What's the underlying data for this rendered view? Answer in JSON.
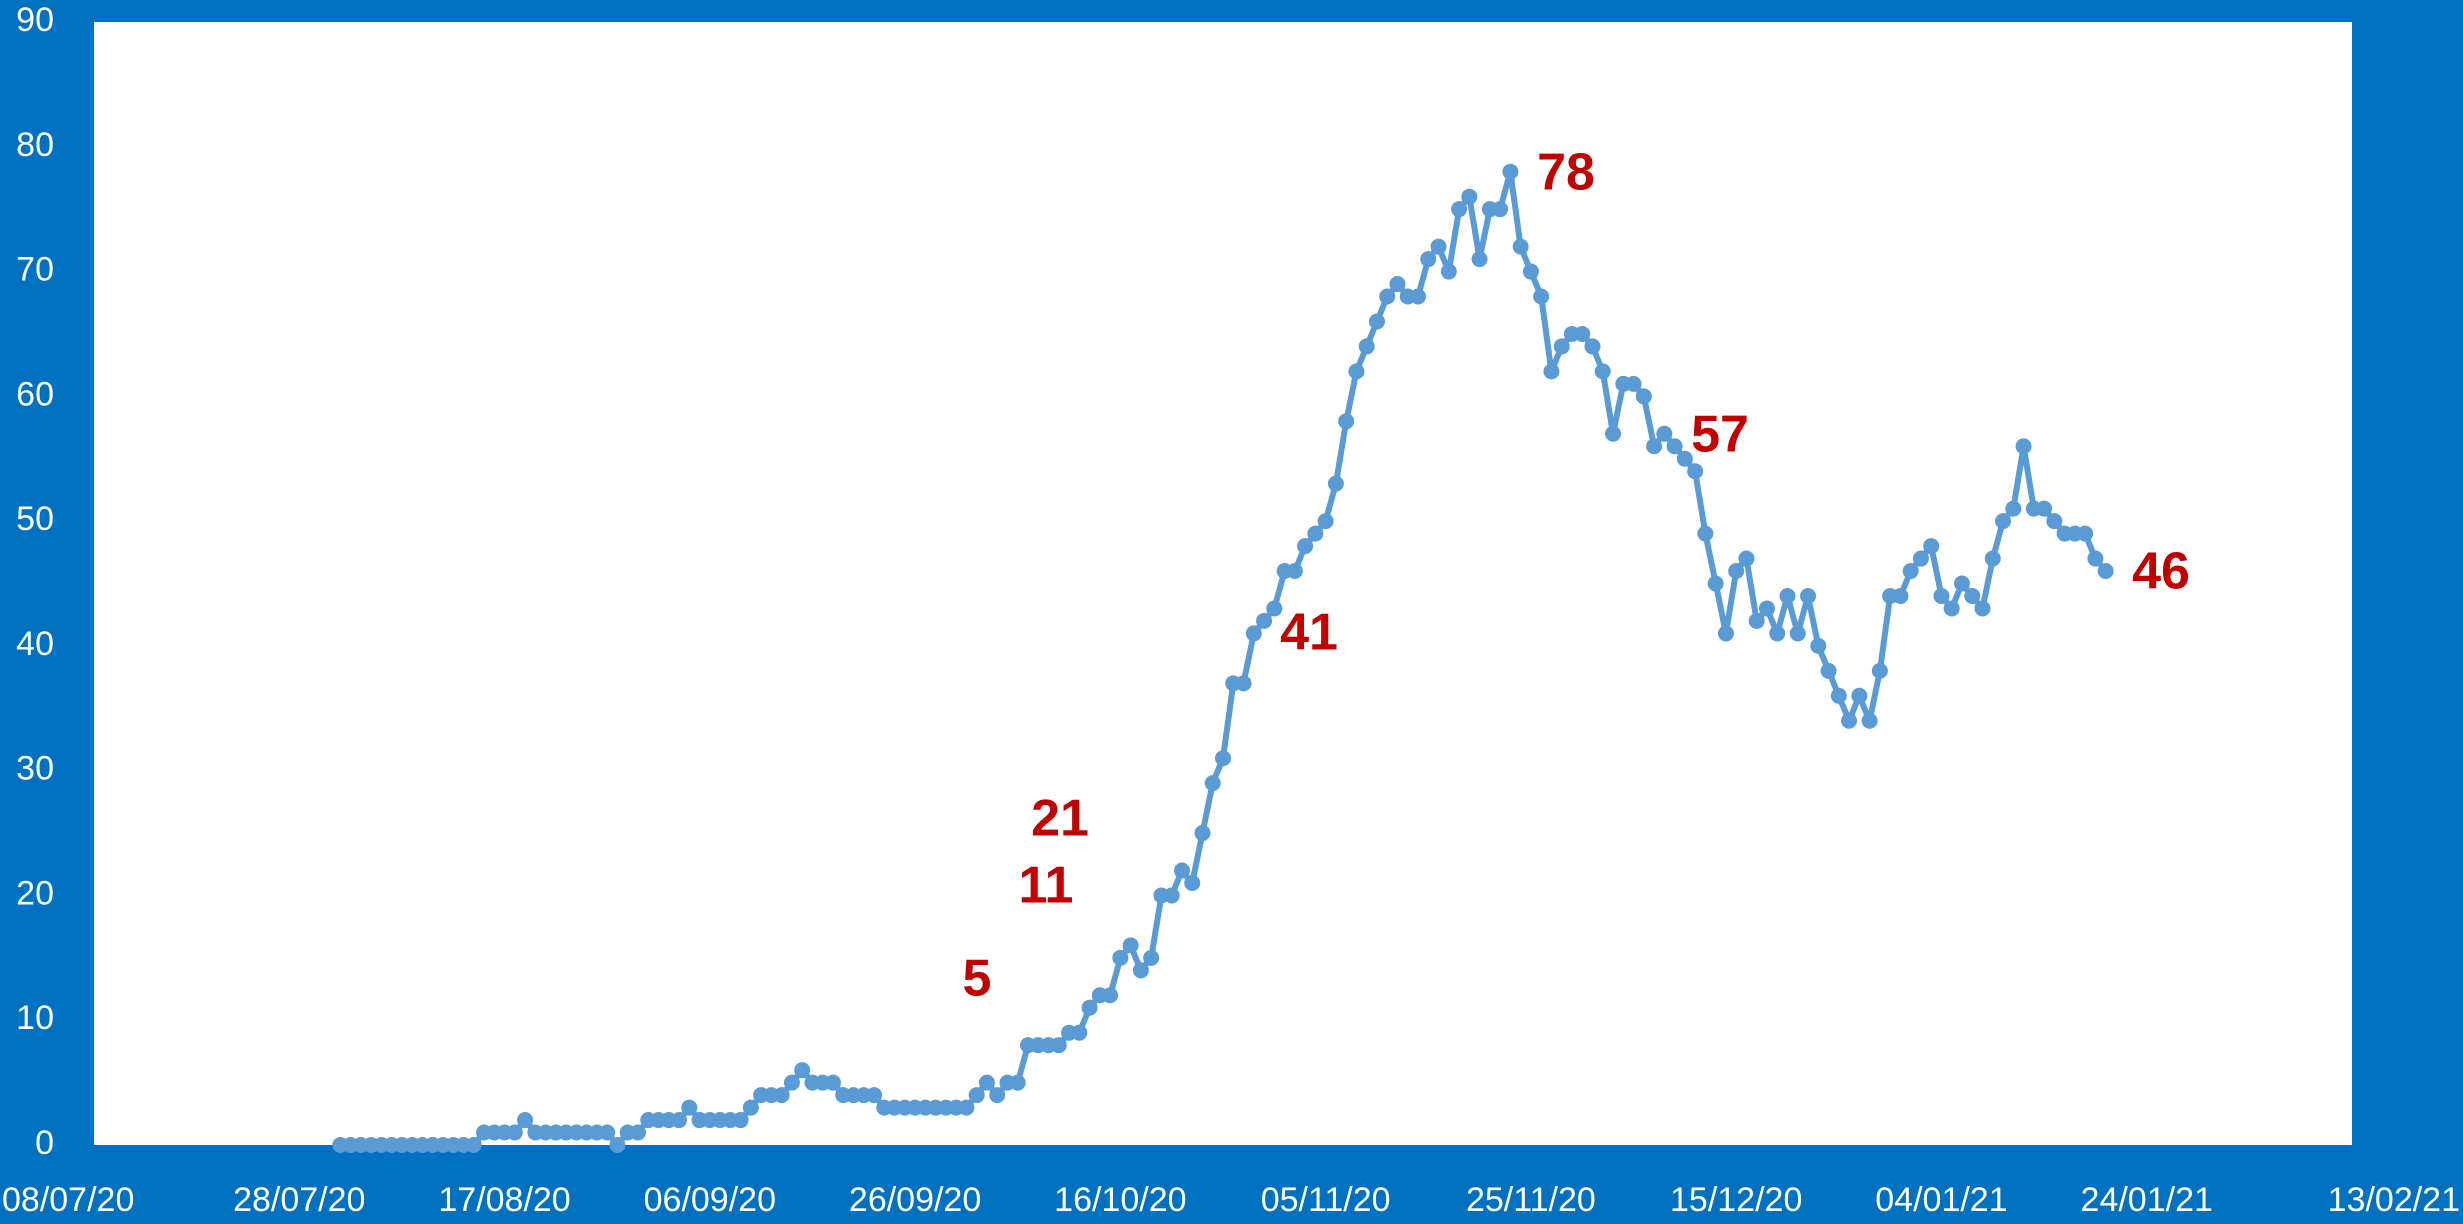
{
  "chart_data": {
    "type": "line",
    "background": "#0070c0",
    "plot_background": "#ffffff",
    "xlim": [
      "08/07/20",
      "13/02/21"
    ],
    "xticks": [
      "08/07/20",
      "28/07/20",
      "17/08/20",
      "06/09/20",
      "26/09/20",
      "16/10/20",
      "05/11/20",
      "25/11/20",
      "15/12/20",
      "04/01/21",
      "24/01/21",
      "13/02/21"
    ],
    "ylim": [
      0,
      90
    ],
    "yticks": [
      0,
      10,
      20,
      30,
      40,
      50,
      60,
      70,
      80,
      90
    ],
    "grid": false,
    "annotations": [
      "5",
      "11",
      "21",
      "41",
      "57",
      "78",
      "46"
    ],
    "annotation_color": "#c00000",
    "x": [
      "01/08/20",
      "02/08/20",
      "03/08/20",
      "04/08/20",
      "05/08/20",
      "06/08/20",
      "07/08/20",
      "08/08/20",
      "09/08/20",
      "10/08/20",
      "11/08/20",
      "12/08/20",
      "13/08/20",
      "14/08/20",
      "15/08/20",
      "16/08/20",
      "17/08/20",
      "18/08/20",
      "19/08/20",
      "20/08/20",
      "21/08/20",
      "22/08/20",
      "23/08/20",
      "24/08/20",
      "25/08/20",
      "26/08/20",
      "27/08/20",
      "28/08/20",
      "29/08/20",
      "30/08/20",
      "31/08/20",
      "01/09/20",
      "02/09/20",
      "03/09/20",
      "04/09/20",
      "05/09/20",
      "06/09/20",
      "07/09/20",
      "08/09/20",
      "09/09/20",
      "10/09/20",
      "11/09/20",
      "12/09/20",
      "13/09/20",
      "14/09/20",
      "15/09/20",
      "16/09/20",
      "17/09/20",
      "18/09/20",
      "19/09/20",
      "20/09/20",
      "21/09/20",
      "22/09/20",
      "23/09/20",
      "24/09/20",
      "25/09/20",
      "26/09/20",
      "27/09/20",
      "28/09/20",
      "29/09/20",
      "30/09/20",
      "01/10/20",
      "02/10/20",
      "03/10/20",
      "04/10/20",
      "05/10/20",
      "06/10/20",
      "07/10/20",
      "08/10/20",
      "09/10/20",
      "10/10/20",
      "11/10/20",
      "12/10/20",
      "13/10/20",
      "14/10/20",
      "15/10/20",
      "16/10/20",
      "17/10/20",
      "18/10/20",
      "19/10/20",
      "20/10/20",
      "21/10/20",
      "22/10/20",
      "23/10/20",
      "24/10/20",
      "25/10/20",
      "26/10/20",
      "27/10/20",
      "28/10/20",
      "29/10/20",
      "30/10/20",
      "31/10/20",
      "01/11/20",
      "02/11/20",
      "03/11/20",
      "04/11/20",
      "05/11/20",
      "06/11/20",
      "07/11/20",
      "08/11/20",
      "09/11/20",
      "10/11/20",
      "11/11/20",
      "12/11/20",
      "13/11/20",
      "14/11/20",
      "15/11/20",
      "16/11/20",
      "17/11/20",
      "18/11/20",
      "19/11/20",
      "20/11/20",
      "21/11/20",
      "22/11/20",
      "23/11/20",
      "24/11/20",
      "25/11/20",
      "26/11/20",
      "27/11/20",
      "28/11/20",
      "29/11/20",
      "30/11/20",
      "01/12/20",
      "02/12/20",
      "03/12/20",
      "04/12/20",
      "05/12/20",
      "06/12/20",
      "07/12/20",
      "08/12/20",
      "09/12/20",
      "10/12/20",
      "11/12/20",
      "12/12/20",
      "13/12/20",
      "14/12/20",
      "15/12/20",
      "16/12/20",
      "17/12/20",
      "18/12/20",
      "19/12/20",
      "20/12/20",
      "21/12/20",
      "22/12/20",
      "23/12/20",
      "24/12/20",
      "25/12/20",
      "26/12/20",
      "27/12/20",
      "28/12/20",
      "29/12/20",
      "30/12/20",
      "31/12/20",
      "01/01/21",
      "02/01/21",
      "03/01/21",
      "04/01/21",
      "05/01/21",
      "06/01/21",
      "07/01/21",
      "08/01/21",
      "09/01/21",
      "10/01/21",
      "11/01/21",
      "12/01/21",
      "13/01/21",
      "14/01/21",
      "15/01/21",
      "16/01/21",
      "17/01/21",
      "18/01/21",
      "19/01/21",
      "20/01/21"
    ],
    "color": "#5b9bd5",
    "values": [
      0,
      0,
      0,
      0,
      0,
      0,
      0,
      0,
      0,
      0,
      0,
      0,
      0,
      0,
      1,
      1,
      1,
      1,
      2,
      1,
      1,
      1,
      1,
      1,
      1,
      1,
      1,
      0,
      1,
      1,
      2,
      2,
      2,
      2,
      3,
      2,
      2,
      2,
      2,
      2,
      3,
      4,
      4,
      4,
      5,
      6,
      5,
      5,
      5,
      4,
      4,
      4,
      4,
      3,
      3,
      3,
      3,
      3,
      3,
      3,
      3,
      3,
      4,
      5,
      4,
      5,
      5,
      8,
      8,
      8,
      8,
      9,
      9,
      11,
      12,
      12,
      15,
      16,
      14,
      15,
      20,
      20,
      22,
      21,
      25,
      29,
      31,
      37,
      37,
      41,
      42,
      43,
      46,
      46,
      48,
      49,
      50,
      53,
      58,
      62,
      64,
      66,
      68,
      69,
      68,
      68,
      71,
      72,
      70,
      75,
      76,
      71,
      75,
      75,
      78,
      72,
      70,
      68,
      62,
      64,
      65,
      65,
      64,
      62,
      57,
      61,
      61,
      60,
      56,
      57,
      56,
      55,
      54,
      49,
      45,
      41,
      46,
      47,
      42,
      43,
      41,
      44,
      41,
      44,
      40,
      38,
      36,
      34,
      36,
      34,
      38,
      44,
      44,
      46,
      47,
      48,
      44,
      43,
      45,
      44,
      43,
      47,
      50,
      51,
      56,
      51,
      51,
      50,
      49,
      49,
      49,
      47,
      46
    ]
  }
}
